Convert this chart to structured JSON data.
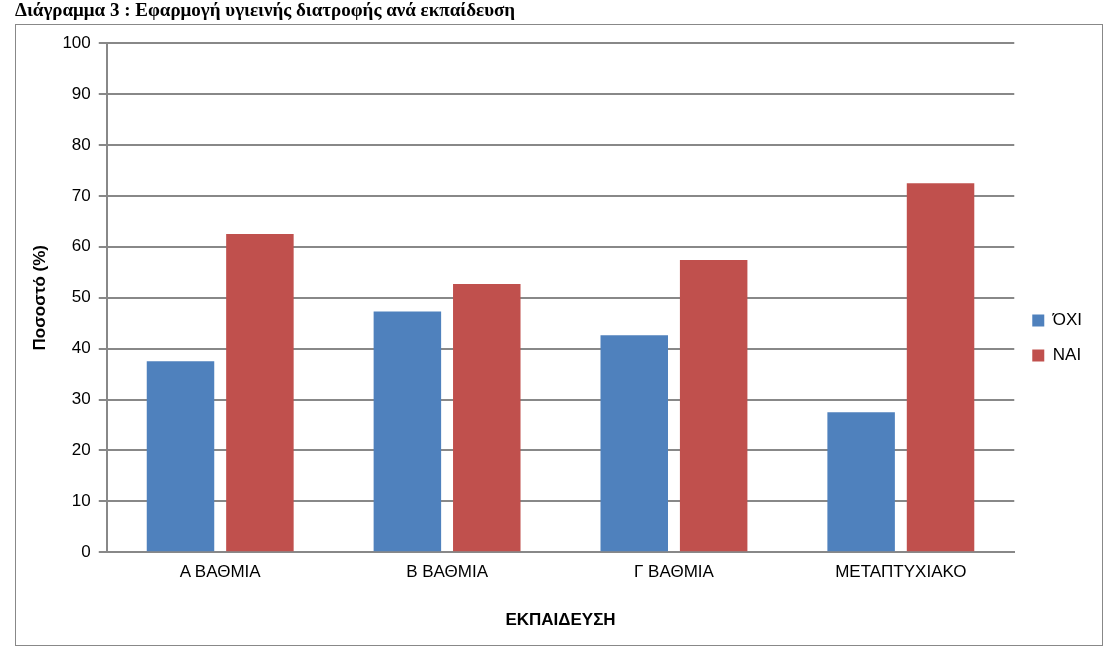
{
  "chart_data": {
    "type": "bar",
    "title": "Διάγραμμα 3 : Εφαρμογή υγιεινής διατροφής ανά εκπαίδευση",
    "xlabel": "ΕΚΠΑΙΔΕΥΣΗ",
    "ylabel": "Ποσοστό (%)",
    "categories": [
      "Α ΒΑΘΜΙΑ",
      "Β ΒΑΘΜΙΑ",
      "Γ ΒΑΘΜΙΑ",
      "ΜΕΤΑΠΤΥΧΙΑΚΟ"
    ],
    "series": [
      {
        "name": "ΌΧΙ",
        "color": "#4f81bd",
        "values": [
          37.5,
          47.3,
          42.6,
          27.5
        ]
      },
      {
        "name": "ΝΑΙ",
        "color": "#c0504d",
        "values": [
          62.5,
          52.7,
          57.4,
          72.5
        ]
      }
    ],
    "ylim": [
      0,
      100
    ],
    "yticks": [
      0,
      10,
      20,
      30,
      40,
      50,
      60,
      70,
      80,
      90,
      100
    ],
    "grid": "y",
    "legend": "right"
  }
}
